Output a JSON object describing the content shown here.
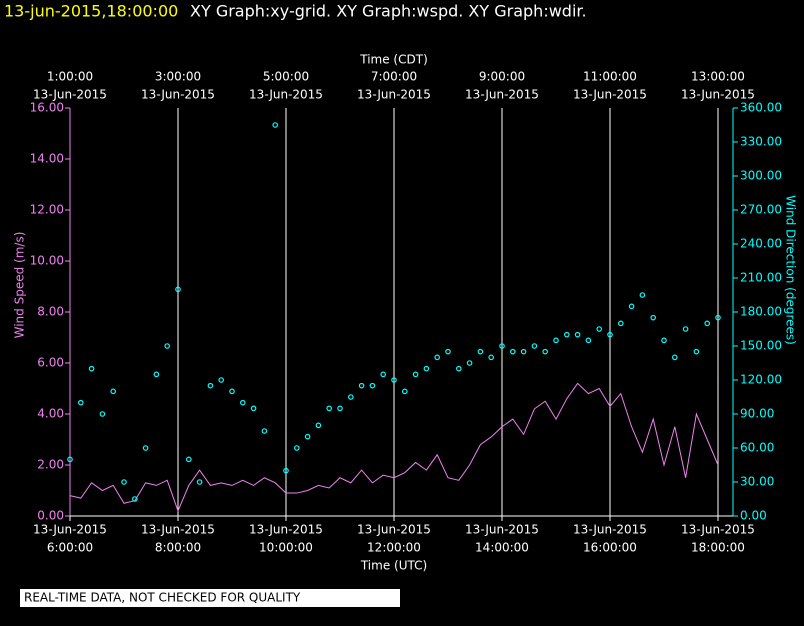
{
  "chart_data": {
    "type": "scatter-line",
    "title_time": "13-jun-2015,18:00:00",
    "title": "XY Graph:xy-grid.  XY Graph:wspd.  XY Graph:wdir.",
    "x2_label": "Time (CDT)",
    "x_label": "Time (UTC)",
    "y_label": "Wind Speed (m/s)",
    "y2_label": "Wind Direction (degrees)",
    "note": "REAL-TIME DATA, NOT CHECKED FOR QUALITY",
    "grid": true,
    "xlim": [
      6,
      18
    ],
    "xticks": [
      {
        "value": 6,
        "label": "6:00:00",
        "date": "13-Jun-2015"
      },
      {
        "value": 8,
        "label": "8:00:00",
        "date": "13-Jun-2015"
      },
      {
        "value": 10,
        "label": "10:00:00",
        "date": "13-Jun-2015"
      },
      {
        "value": 12,
        "label": "12:00:00",
        "date": "13-Jun-2015"
      },
      {
        "value": 14,
        "label": "14:00:00",
        "date": "13-Jun-2015"
      },
      {
        "value": 16,
        "label": "16:00:00",
        "date": "13-Jun-2015"
      },
      {
        "value": 18,
        "label": "18:00:00",
        "date": "13-Jun-2015"
      }
    ],
    "x2ticks": [
      {
        "value": 6,
        "label": "1:00:00",
        "date": "13-Jun-2015"
      },
      {
        "value": 8,
        "label": "3:00:00",
        "date": "13-Jun-2015"
      },
      {
        "value": 10,
        "label": "5:00:00",
        "date": "13-Jun-2015"
      },
      {
        "value": 12,
        "label": "7:00:00",
        "date": "13-Jun-2015"
      },
      {
        "value": 14,
        "label": "9:00:00",
        "date": "13-Jun-2015"
      },
      {
        "value": 16,
        "label": "11:00:00",
        "date": "13-Jun-2015"
      },
      {
        "value": 18,
        "label": "13:00:00",
        "date": "13-Jun-2015"
      }
    ],
    "ylim": [
      0,
      16
    ],
    "yticks": [
      {
        "value": 0,
        "label": "0.00"
      },
      {
        "value": 2,
        "label": "2.00"
      },
      {
        "value": 4,
        "label": "4.00"
      },
      {
        "value": 6,
        "label": "6.00"
      },
      {
        "value": 8,
        "label": "8.00"
      },
      {
        "value": 10,
        "label": "10.00"
      },
      {
        "value": 12,
        "label": "12.00"
      },
      {
        "value": 14,
        "label": "14.00"
      },
      {
        "value": 16,
        "label": "16.00"
      }
    ],
    "y2lim": [
      0,
      360
    ],
    "y2ticks": [
      {
        "value": 0,
        "label": "0.00"
      },
      {
        "value": 30,
        "label": "30.00"
      },
      {
        "value": 60,
        "label": "60.00"
      },
      {
        "value": 90,
        "label": "90.00"
      },
      {
        "value": 120,
        "label": "120.00"
      },
      {
        "value": 150,
        "label": "150.00"
      },
      {
        "value": 180,
        "label": "180.00"
      },
      {
        "value": 210,
        "label": "210.00"
      },
      {
        "value": 240,
        "label": "240.00"
      },
      {
        "value": 270,
        "label": "270.00"
      },
      {
        "value": 300,
        "label": "300.00"
      },
      {
        "value": 330,
        "label": "330.00"
      },
      {
        "value": 360,
        "label": "360.00"
      }
    ],
    "x": [
      6.0,
      6.2,
      6.4,
      6.6,
      6.8,
      7.0,
      7.2,
      7.4,
      7.6,
      7.8,
      8.0,
      8.2,
      8.4,
      8.6,
      8.8,
      9.0,
      9.2,
      9.4,
      9.6,
      9.8,
      10.0,
      10.2,
      10.4,
      10.6,
      10.8,
      11.0,
      11.2,
      11.4,
      11.6,
      11.8,
      12.0,
      12.2,
      12.4,
      12.6,
      12.8,
      13.0,
      13.2,
      13.4,
      13.6,
      13.8,
      14.0,
      14.2,
      14.4,
      14.6,
      14.8,
      15.0,
      15.2,
      15.4,
      15.6,
      15.8,
      16.0,
      16.2,
      16.4,
      16.6,
      16.8,
      17.0,
      17.2,
      17.4,
      17.6,
      17.8,
      18.0
    ],
    "series": [
      {
        "name": "wspd",
        "color": "#ee82ee",
        "style": "line",
        "values": [
          0.8,
          0.7,
          1.3,
          1.0,
          1.2,
          0.5,
          0.6,
          1.3,
          1.2,
          1.4,
          0.2,
          1.2,
          1.8,
          1.2,
          1.3,
          1.2,
          1.4,
          1.2,
          1.5,
          1.3,
          0.9,
          0.9,
          1.0,
          1.2,
          1.1,
          1.5,
          1.3,
          1.8,
          1.3,
          1.6,
          1.5,
          1.7,
          2.1,
          1.8,
          2.4,
          1.5,
          1.4,
          2.0,
          2.8,
          3.1,
          3.5,
          3.8,
          3.2,
          4.2,
          4.5,
          3.8,
          4.6,
          5.2,
          4.8,
          5.0,
          4.3,
          4.8,
          3.5,
          2.5,
          3.8,
          2.0,
          3.5,
          1.5,
          4.0,
          3.0,
          2.0
        ]
      },
      {
        "name": "wdir",
        "color": "#00ffff",
        "style": "points",
        "axis": "y2",
        "values": [
          50,
          100,
          130,
          90,
          110,
          30,
          15,
          60,
          125,
          150,
          200,
          50,
          30,
          115,
          120,
          110,
          100,
          95,
          75,
          345,
          40,
          60,
          70,
          80,
          95,
          95,
          105,
          115,
          115,
          125,
          120,
          110,
          125,
          130,
          140,
          145,
          130,
          135,
          145,
          140,
          150,
          145,
          145,
          150,
          145,
          155,
          160,
          160,
          155,
          165,
          160,
          170,
          185,
          195,
          175,
          155,
          140,
          165,
          145,
          170,
          175
        ]
      }
    ]
  }
}
